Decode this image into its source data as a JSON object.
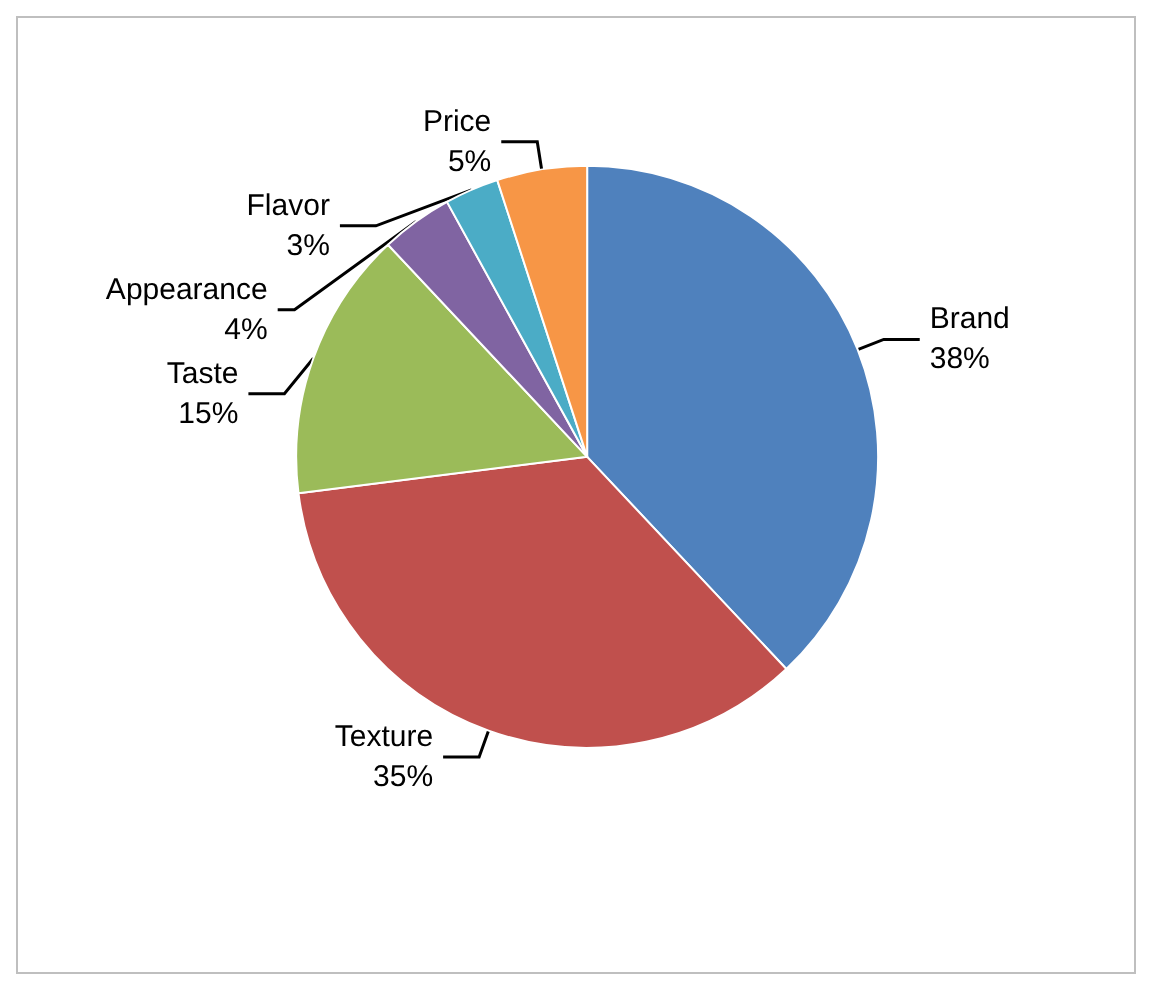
{
  "chart_data": {
    "type": "pie",
    "categories": [
      "Brand",
      "Texture",
      "Taste",
      "Appearance",
      "Flavor",
      "Price"
    ],
    "values": [
      38,
      35,
      15,
      4,
      3,
      5
    ],
    "value_labels": [
      "38%",
      "35%",
      "15%",
      "4%",
      "3%",
      "5%"
    ],
    "colors": [
      "#4f81bd",
      "#c0504d",
      "#9bbb59",
      "#8064a2",
      "#4bacc6",
      "#f79646"
    ],
    "legend": false
  }
}
